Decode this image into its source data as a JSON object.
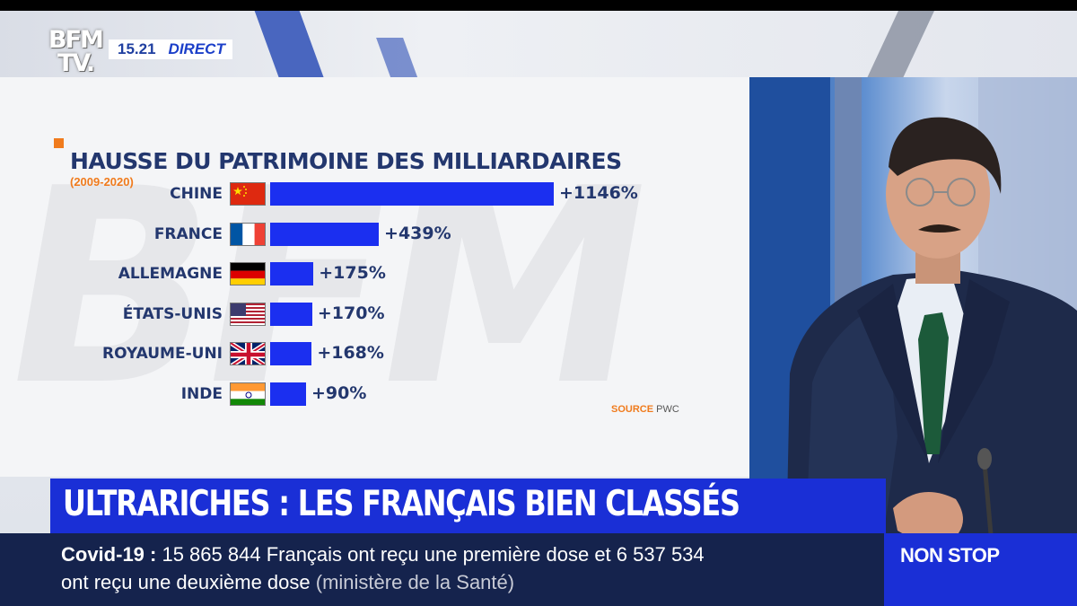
{
  "channel": {
    "logo_line1": "BFM",
    "logo_line2": "TV.",
    "time": "15.21",
    "status": "DIRECT"
  },
  "colors": {
    "accent_blue": "#1a2fd6",
    "bar_blue": "#1b2ff0",
    "title_navy": "#23376e",
    "accent_orange": "#f07b1d",
    "ticker_bg": "#15234d"
  },
  "chart_data": {
    "type": "bar",
    "orientation": "horizontal",
    "title": "HAUSSE DU PATRIMOINE DES MILLIARDAIRES",
    "subtitle": "(2009-2020)",
    "categories": [
      "CHINE",
      "FRANCE",
      "ALLEMAGNE",
      "ÉTATS-UNIS",
      "ROYAUME-UNI",
      "INDE"
    ],
    "flags": [
      "china-flag-icon",
      "france-flag-icon",
      "germany-flag-icon",
      "usa-flag-icon",
      "uk-flag-icon",
      "india-flag-icon"
    ],
    "values": [
      1146,
      439,
      175,
      170,
      168,
      90
    ],
    "value_labels": [
      "+1146%",
      "+439%",
      "+175%",
      "+170%",
      "+168%",
      "+90%"
    ],
    "unit": "%",
    "xlim": [
      0,
      1146
    ],
    "source_label": "SOURCE",
    "source_value": "PWC"
  },
  "headline": "ULTRARICHES : LES FRANÇAIS BIEN CLASSÉS",
  "ticker": {
    "title": "Covid-19  :",
    "line1": " 15 865 844 Français ont reçu une première dose et 6 537 534",
    "line2": "ont reçu une deuxième dose",
    "source": "(ministère de la Santé)"
  },
  "badge": "NON STOP"
}
